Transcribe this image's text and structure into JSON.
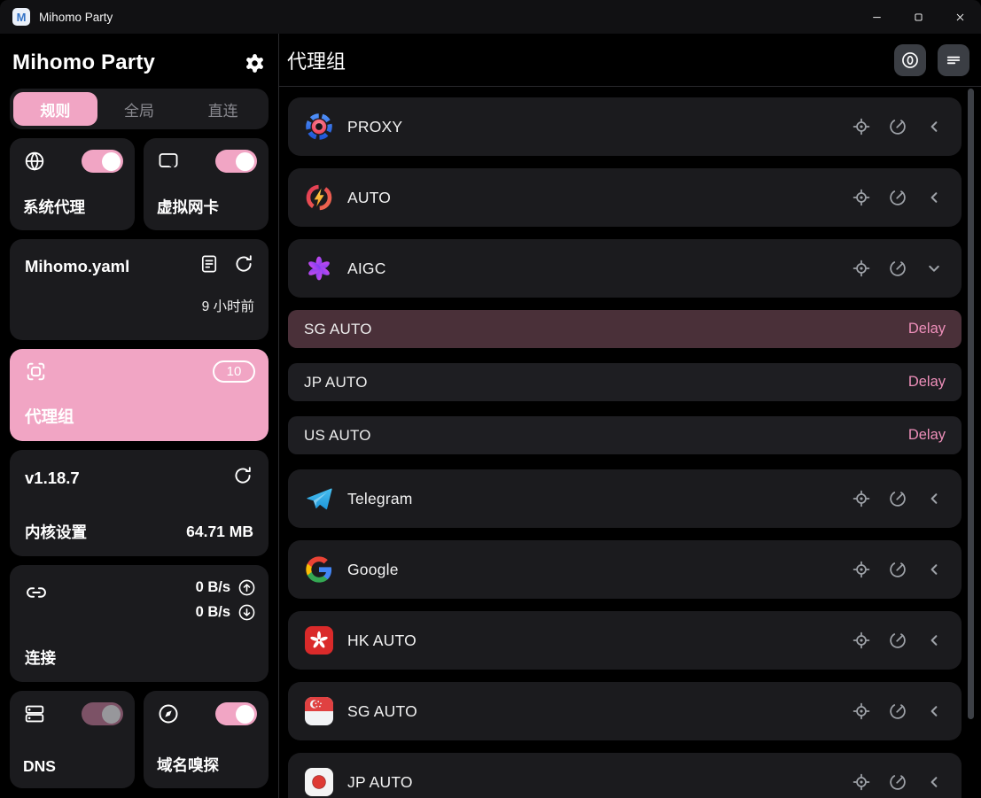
{
  "window": {
    "title": "Mihomo Party",
    "app_icon_letter": "M",
    "controls": {
      "minimize": "minimize",
      "maximize": "maximize",
      "close": "close"
    }
  },
  "colors": {
    "accent_pink": "#f1a5c4",
    "delay_pink": "#ee8fba",
    "selected_row": "#4a3039",
    "card_bg": "#1b1b1e",
    "icon_gray": "#9ea2a8"
  },
  "sidebar": {
    "title": "Mihomo Party",
    "tabs": [
      {
        "label": "规则",
        "active": true
      },
      {
        "label": "全局",
        "active": false
      },
      {
        "label": "直连",
        "active": false
      }
    ],
    "system_proxy": {
      "label": "系统代理",
      "enabled": true
    },
    "tun": {
      "label": "虚拟网卡",
      "enabled": true
    },
    "profile": {
      "name": "Mihomo.yaml",
      "updated": "9 小时前"
    },
    "proxy_groups": {
      "label": "代理组",
      "count": "10"
    },
    "core": {
      "version": "v1.18.7",
      "label": "内核设置",
      "memory": "64.71 MB"
    },
    "connections": {
      "label": "连接",
      "upload": "0 B/s",
      "download": "0 B/s"
    },
    "dns": {
      "label": "DNS",
      "enabled": true,
      "disabled": true
    },
    "sniff": {
      "label": "域名嗅探",
      "enabled": true
    }
  },
  "main": {
    "title": "代理组",
    "groups": [
      {
        "name": "PROXY",
        "logo": "proxy-logo",
        "expanded": false
      },
      {
        "name": "AUTO",
        "logo": "auto-logo",
        "expanded": false
      },
      {
        "name": "AIGC",
        "logo": "openai-logo",
        "expanded": true,
        "proxies": [
          {
            "name": "SG AUTO",
            "delay_label": "Delay",
            "selected": true
          },
          {
            "name": "JP AUTO",
            "delay_label": "Delay",
            "selected": false
          },
          {
            "name": "US AUTO",
            "delay_label": "Delay",
            "selected": false
          }
        ]
      },
      {
        "name": "Telegram",
        "logo": "telegram-logo",
        "expanded": false
      },
      {
        "name": "Google",
        "logo": "google-logo",
        "expanded": false
      },
      {
        "name": "HK AUTO",
        "logo": "hk-flag",
        "expanded": false
      },
      {
        "name": "SG AUTO",
        "logo": "sg-flag",
        "expanded": false
      },
      {
        "name": "JP AUTO",
        "logo": "jp-flag",
        "expanded": false
      }
    ]
  }
}
